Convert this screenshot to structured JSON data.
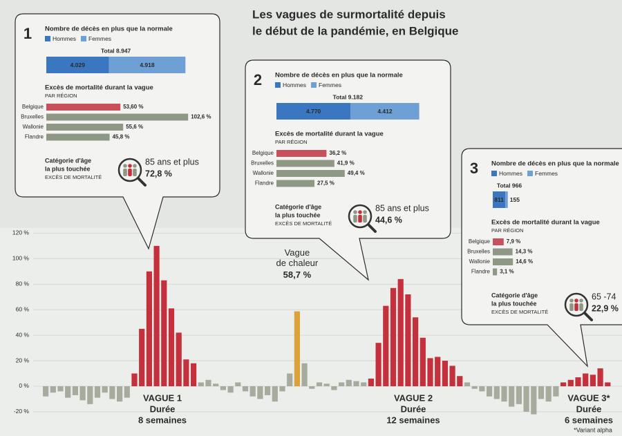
{
  "chart_data": {
    "type": "bar",
    "title": [
      "Les vagues de surmortalité depuis",
      "le début de la pandémie, en Belgique"
    ],
    "categories": [
      null,
      null,
      null,
      null,
      null,
      null,
      null,
      null,
      null,
      null,
      null,
      null,
      null,
      null,
      null,
      null,
      null,
      null,
      null,
      null,
      null,
      null,
      null,
      null,
      null,
      null,
      null,
      null,
      null,
      null,
      null,
      null,
      null,
      null,
      null,
      null,
      null,
      null,
      null,
      null,
      null,
      null,
      null,
      null,
      null,
      null,
      null,
      null,
      null,
      null,
      null,
      null,
      null,
      null,
      null,
      null,
      null,
      null,
      null,
      null,
      null,
      null,
      null,
      null,
      null,
      null,
      null,
      null,
      null,
      null,
      null,
      null,
      null,
      null,
      null,
      null,
      null
    ],
    "values": [
      -8,
      -5,
      -4,
      -9,
      -7,
      -11,
      -14,
      -9,
      -5,
      -10,
      -12,
      -9,
      10,
      45,
      90,
      110,
      83,
      61,
      42,
      21,
      18,
      3,
      5,
      2,
      -3,
      -5,
      3,
      -4,
      -8,
      -10,
      -7,
      -12,
      -4,
      10,
      58.7,
      18,
      -2,
      3,
      2,
      -3,
      3,
      5,
      4,
      3,
      6,
      34,
      63,
      77,
      84,
      72,
      54,
      38,
      22,
      23,
      20,
      16,
      8,
      3,
      -2,
      -4,
      -8,
      -10,
      -12,
      -16,
      -14,
      -20,
      -22,
      -10,
      -12,
      -8,
      3,
      5,
      7,
      10,
      9,
      14,
      3
    ],
    "colors": [
      "#a6ab9d",
      "#a6ab9d",
      "#a6ab9d",
      "#a6ab9d",
      "#a6ab9d",
      "#a6ab9d",
      "#a6ab9d",
      "#a6ab9d",
      "#a6ab9d",
      "#a6ab9d",
      "#a6ab9d",
      "#a6ab9d",
      "#c4303b",
      "#c4303b",
      "#c4303b",
      "#c4303b",
      "#c4303b",
      "#c4303b",
      "#c4303b",
      "#c4303b",
      "#c4303b",
      "#a6ab9d",
      "#a6ab9d",
      "#a6ab9d",
      "#a6ab9d",
      "#a6ab9d",
      "#a6ab9d",
      "#a6ab9d",
      "#a6ab9d",
      "#a6ab9d",
      "#a6ab9d",
      "#a6ab9d",
      "#a6ab9d",
      "#a6ab9d",
      "#dba23a",
      "#a6ab9d",
      "#a6ab9d",
      "#a6ab9d",
      "#a6ab9d",
      "#a6ab9d",
      "#a6ab9d",
      "#a6ab9d",
      "#a6ab9d",
      "#a6ab9d",
      "#c4303b",
      "#c4303b",
      "#c4303b",
      "#c4303b",
      "#c4303b",
      "#c4303b",
      "#c4303b",
      "#c4303b",
      "#c4303b",
      "#c4303b",
      "#c4303b",
      "#c4303b",
      "#c4303b",
      "#a6ab9d",
      "#a6ab9d",
      "#a6ab9d",
      "#a6ab9d",
      "#a6ab9d",
      "#a6ab9d",
      "#a6ab9d",
      "#a6ab9d",
      "#a6ab9d",
      "#a6ab9d",
      "#a6ab9d",
      "#a6ab9d",
      "#a6ab9d",
      "#c4303b",
      "#c4303b",
      "#c4303b",
      "#c4303b",
      "#c4303b",
      "#c4303b",
      "#c4303b"
    ],
    "value_labels": [
      null,
      null,
      null,
      null,
      null,
      null,
      null,
      null,
      null,
      null,
      null,
      null,
      null,
      null,
      null,
      null,
      null,
      null,
      null,
      null,
      null,
      null,
      null,
      null,
      null,
      null,
      null,
      null,
      null,
      null,
      null,
      null,
      null,
      null,
      "58,7 %",
      null,
      null,
      null,
      null,
      null,
      null,
      null,
      null,
      null,
      null,
      null,
      null,
      null,
      null,
      null,
      null,
      null,
      null,
      null,
      null,
      null,
      null,
      null,
      null,
      null,
      null,
      null,
      null,
      null,
      null,
      null,
      null,
      null,
      null,
      null,
      null,
      null,
      null,
      null,
      null,
      null,
      null
    ],
    "annotation": [
      "Vague",
      "de chaleur"
    ],
    "ylim": [
      -39,
      124
    ],
    "yticks": [
      {
        "value": 120,
        "label": "120 %"
      },
      {
        "value": 100,
        "label": "100 %"
      },
      {
        "value": 80,
        "label": "80 %"
      },
      {
        "value": 60,
        "label": "60 %"
      },
      {
        "value": 40,
        "label": "40 %"
      },
      {
        "value": 20,
        "label": "20 %"
      },
      {
        "value": 0,
        "label": "0 %"
      },
      {
        "value": -20,
        "label": "-20 %"
      }
    ],
    "grid": true,
    "waves": [
      {
        "label": "VAGUE 1",
        "duration_label": "Durée",
        "duration": "8 semaines"
      },
      {
        "label": "VAGUE 2",
        "duration_label": "Durée",
        "duration": "12 semaines"
      },
      {
        "label": "VAGUE 3*",
        "duration_label": "Durée",
        "duration": "6 semaines"
      }
    ],
    "footnote": "*Variant alpha"
  },
  "panels": [
    {
      "number": "1",
      "heading": "Nombre de décès en plus que la normale",
      "legend": [
        {
          "name": "Hommes",
          "color": "#3a77c0"
        },
        {
          "name": "Femmes",
          "color": "#6ea0d6"
        }
      ],
      "total_label": "Total 8.947",
      "deaths": {
        "values": [
          4029,
          4918
        ],
        "value_labels": [
          "4.029",
          "4.918"
        ]
      },
      "regions_title": "Excès de mortalité durant la vague",
      "regions_subtitle": "PAR RÉGION",
      "regions": {
        "categories": [
          "Belgique",
          "Bruxelles",
          "Wallonie",
          "Flandre"
        ],
        "values": [
          53.6,
          102.6,
          55.6,
          45.8
        ],
        "value_labels": [
          "53,60 %",
          "102,6 %",
          "55,6 %",
          "45,8 %"
        ],
        "colors": [
          "#c9505a",
          "#8e9885",
          "#8e9885",
          "#8e9885"
        ]
      },
      "age_title": [
        "Catégorie d'âge",
        "la plus touchée"
      ],
      "age_subtitle": "EXCÈS DE MORTALITÉ",
      "age_group": "85 ans et plus",
      "age_value_label": "72,8 %"
    },
    {
      "number": "2",
      "heading": "Nombre de décès en plus que la normale",
      "legend": [
        {
          "name": "Hommes",
          "color": "#3a77c0"
        },
        {
          "name": "Femmes",
          "color": "#6ea0d6"
        }
      ],
      "total_label": "Total 9.182",
      "deaths": {
        "values": [
          4770,
          4412
        ],
        "value_labels": [
          "4.770",
          "4.412"
        ]
      },
      "regions_title": "Excès de mortalité durant la vague",
      "regions_subtitle": "PAR RÉGION",
      "regions": {
        "categories": [
          "Belgique",
          "Bruxelles",
          "Wallonie",
          "Flandre"
        ],
        "values": [
          36.2,
          41.9,
          49.4,
          27.5
        ],
        "value_labels": [
          "36,2 %",
          "41,9 %",
          "49,4 %",
          "27,5 %"
        ],
        "colors": [
          "#c9505a",
          "#8e9885",
          "#8e9885",
          "#8e9885"
        ]
      },
      "age_title": [
        "Catégorie d'âge",
        "la plus touchée"
      ],
      "age_subtitle": "EXCÈS DE MORTALITÉ",
      "age_group": "85 ans et plus",
      "age_value_label": "44,6 %"
    },
    {
      "number": "3",
      "heading": "Nombre de décès en plus que la normale",
      "legend": [
        {
          "name": "Hommes",
          "color": "#3a77c0"
        },
        {
          "name": "Femmes",
          "color": "#6ea0d6"
        }
      ],
      "total_label": "Total 966",
      "deaths": {
        "values": [
          811,
          155
        ],
        "value_labels": [
          "811",
          "155"
        ]
      },
      "regions_title": "Excès de mortalité durant la vague",
      "regions_subtitle": "PAR RÉGION",
      "regions": {
        "categories": [
          "Belgique",
          "Bruxelles",
          "Wallonie",
          "Flandre"
        ],
        "values": [
          7.9,
          14.3,
          14.6,
          3.1
        ],
        "value_labels": [
          "7,9 %",
          "14,3 %",
          "14,6 %",
          "3,1 %"
        ],
        "colors": [
          "#c9505a",
          "#8e9885",
          "#8e9885",
          "#8e9885"
        ]
      },
      "age_title": [
        "Catégorie d'âge",
        "la plus touchée"
      ],
      "age_subtitle": "EXCÈS DE MORTALITÉ",
      "age_group": "65 -74",
      "age_value_label": "22,9 %"
    }
  ]
}
